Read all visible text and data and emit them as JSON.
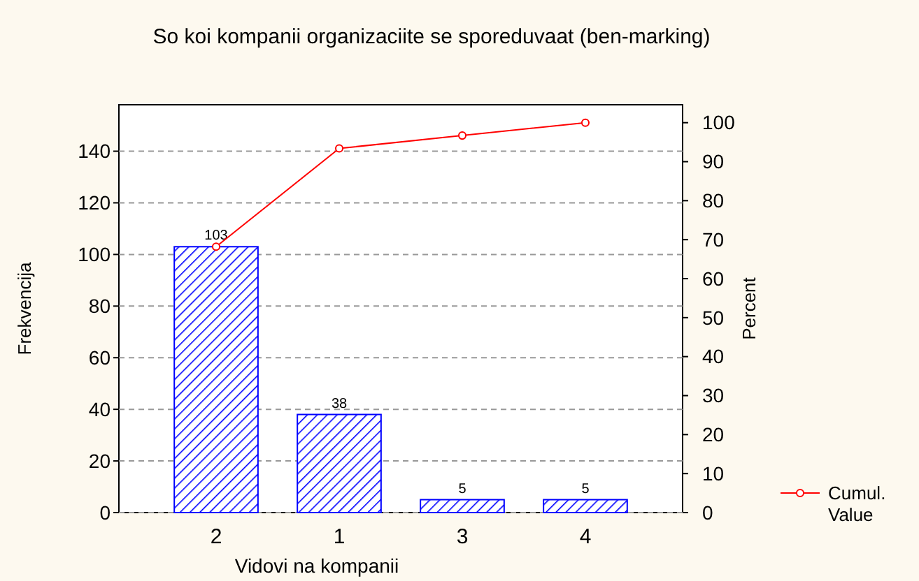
{
  "chart_data": {
    "type": "bar",
    "title": "So koi kompanii organizaciite se sporeduvaat (ben-marking)",
    "xlabel": "Vidovi na kompanii",
    "ylabel": "Frekvencija",
    "y2label": "Percent",
    "categories": [
      "2",
      "1",
      "3",
      "4"
    ],
    "series": [
      {
        "color": "#0000ff",
        "values": [
          103,
          38,
          5,
          5
        ],
        "value_labels": [
          "103",
          "38",
          "5",
          "5"
        ]
      },
      {
        "type": "line",
        "name": "Cumul. Value",
        "axis": "y2",
        "color": "#ff0000",
        "values": [
          68.2,
          93.4,
          96.7,
          100
        ]
      }
    ],
    "ylim": [
      0,
      158
    ],
    "yticks": [
      0,
      20,
      40,
      60,
      80,
      100,
      120,
      140
    ],
    "y2lim": [
      0,
      104.6
    ],
    "y2ticks": [
      0,
      10,
      20,
      30,
      40,
      50,
      60,
      70,
      80,
      90,
      100
    ],
    "grid": "y",
    "legend": "bottom right",
    "marker": "circle"
  }
}
